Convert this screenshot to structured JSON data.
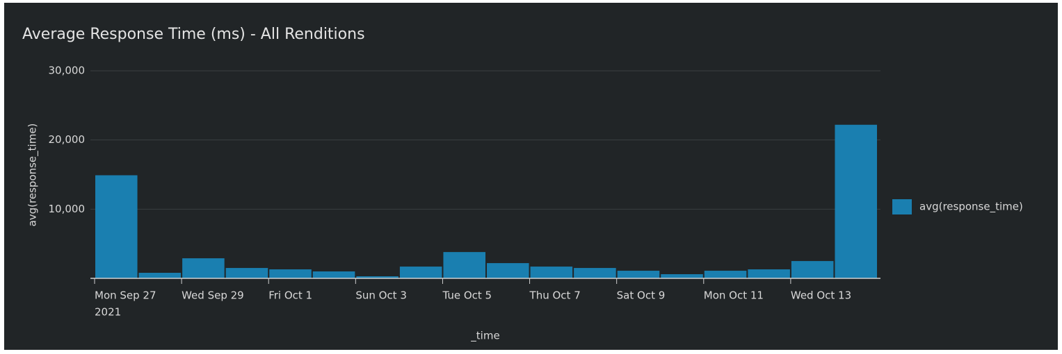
{
  "chart_data": {
    "type": "bar",
    "title": "Average Response Time (ms) - All Renditions",
    "y_label": "avg(response_time)",
    "x_label": "_time",
    "categories": [
      "Mon Sep 27",
      null,
      "Wed Sep 29",
      null,
      "Fri Oct 1",
      null,
      "Sun Oct 3",
      null,
      "Tue Oct 5",
      null,
      "Thu Oct 7",
      null,
      "Sat Oct 9",
      null,
      "Mon Oct 11",
      null,
      "Wed Oct 13",
      null
    ],
    "year_label": "2021",
    "series": [
      {
        "name": "avg(response_time)",
        "color": "#1a7fb0",
        "values": [
          14900,
          800,
          2900,
          1500,
          1300,
          1000,
          300,
          1700,
          3800,
          2200,
          1700,
          1500,
          1100,
          600,
          1100,
          1300,
          2500,
          22200
        ]
      }
    ],
    "ylim": [
      0,
      30000
    ],
    "yticks": [
      {
        "value": 10000,
        "label": "10,000"
      },
      {
        "value": 20000,
        "label": "20,000"
      },
      {
        "value": 30000,
        "label": "30,000"
      }
    ],
    "grid": true,
    "legend": "right"
  }
}
